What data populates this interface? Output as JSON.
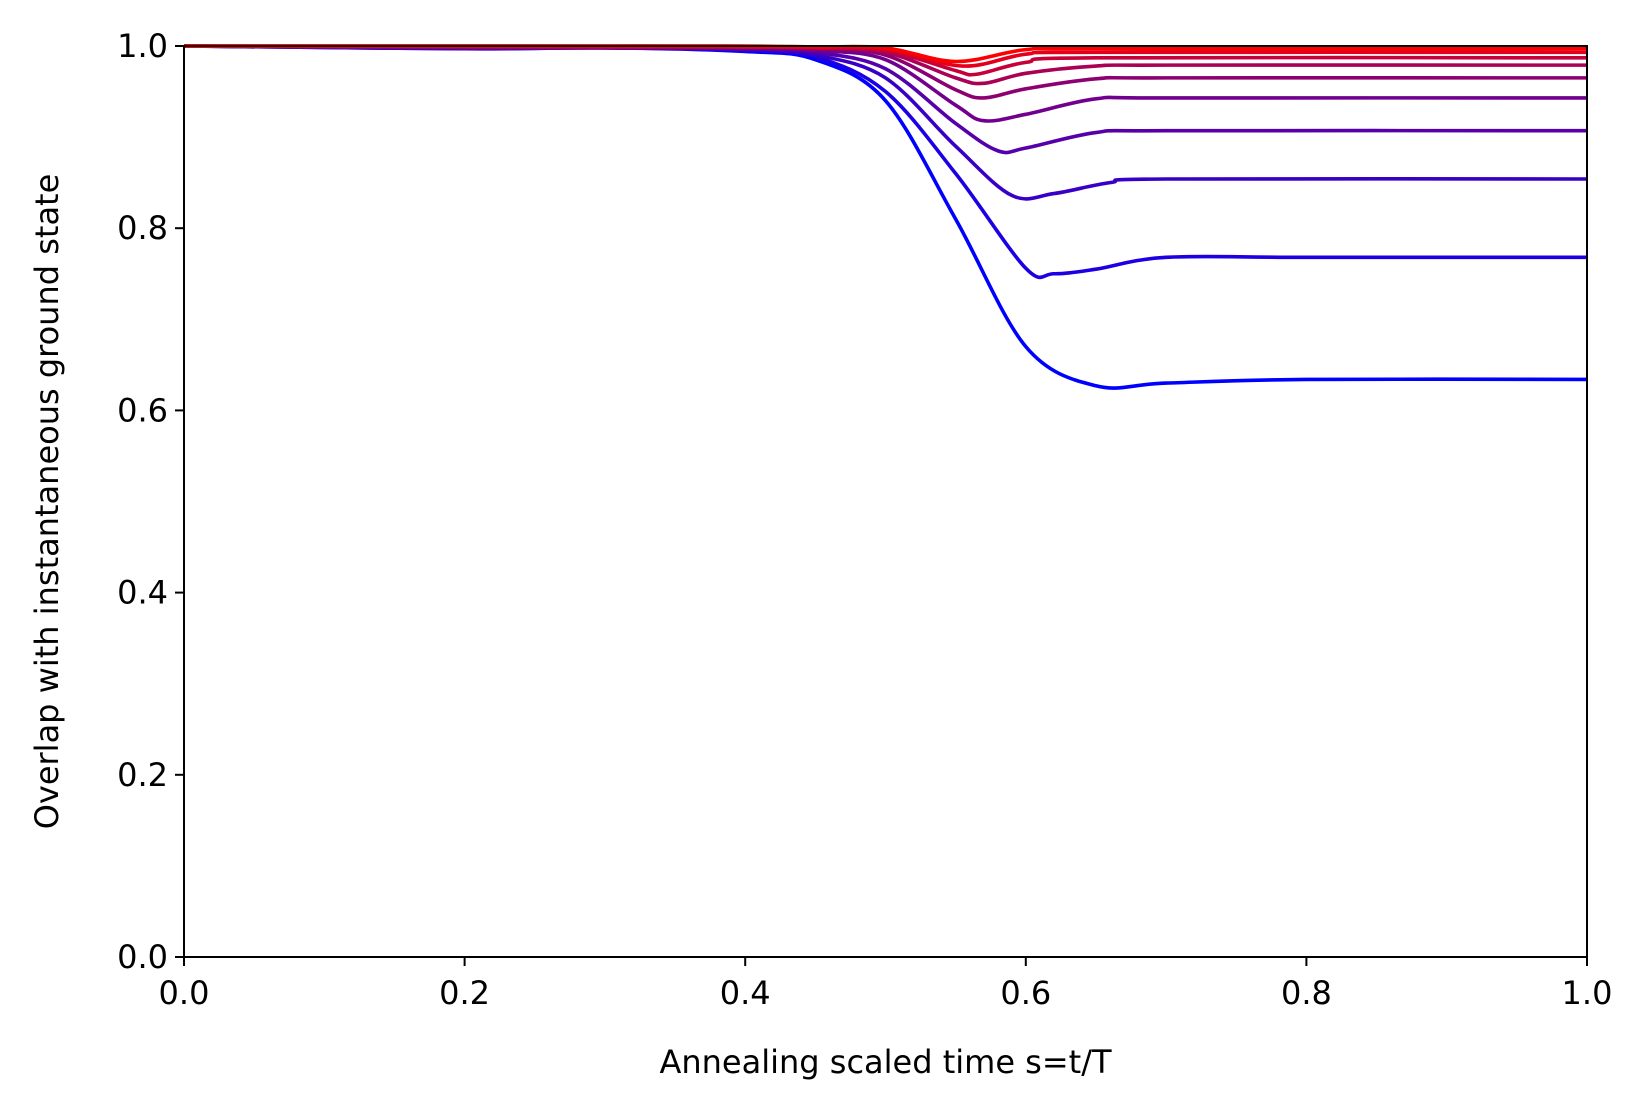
{
  "chart_data": {
    "type": "line",
    "title": "",
    "xlabel": "Annealing scaled time s=t/T",
    "ylabel": "Overlap with instantaneous ground state",
    "xlim": [
      0.0,
      1.0
    ],
    "ylim": [
      0.0,
      1.0
    ],
    "xticks": [
      "0.0",
      "0.2",
      "0.4",
      "0.6",
      "0.8",
      "1.0"
    ],
    "yticks": [
      "0.0",
      "0.2",
      "0.4",
      "0.6",
      "0.8",
      "1.0"
    ],
    "grid": false,
    "legend": "none",
    "color_gradient": {
      "from": "#0000ff",
      "to": "#ff0000"
    },
    "series": [
      {
        "color": "#0000ff",
        "points": [
          [
            0,
            1.0
          ],
          [
            0.2,
            0.997
          ],
          [
            0.3,
            0.998
          ],
          [
            0.4,
            0.994
          ],
          [
            0.45,
            0.985
          ],
          [
            0.5,
            0.94
          ],
          [
            0.55,
            0.81
          ],
          [
            0.6,
            0.67
          ],
          [
            0.65,
            0.627
          ],
          [
            0.7,
            0.63
          ],
          [
            0.8,
            0.634
          ],
          [
            1.0,
            0.634
          ]
        ]
      },
      {
        "color": "#1c00e3",
        "points": [
          [
            0,
            1.0
          ],
          [
            0.2,
            0.997
          ],
          [
            0.3,
            0.998
          ],
          [
            0.4,
            0.995
          ],
          [
            0.45,
            0.988
          ],
          [
            0.5,
            0.95
          ],
          [
            0.55,
            0.86
          ],
          [
            0.6,
            0.756
          ],
          [
            0.62,
            0.75
          ],
          [
            0.65,
            0.755
          ],
          [
            0.7,
            0.768
          ],
          [
            0.8,
            0.768
          ],
          [
            1.0,
            0.768
          ]
        ]
      },
      {
        "color": "#3800c7",
        "points": [
          [
            0,
            1.0
          ],
          [
            0.2,
            0.998
          ],
          [
            0.3,
            0.998
          ],
          [
            0.4,
            0.996
          ],
          [
            0.45,
            0.99
          ],
          [
            0.5,
            0.965
          ],
          [
            0.55,
            0.89
          ],
          [
            0.59,
            0.836
          ],
          [
            0.62,
            0.838
          ],
          [
            0.66,
            0.85
          ],
          [
            0.7,
            0.854
          ],
          [
            1.0,
            0.854
          ]
        ]
      },
      {
        "color": "#5500aa",
        "points": [
          [
            0,
            1.0
          ],
          [
            0.2,
            0.998
          ],
          [
            0.3,
            0.998
          ],
          [
            0.4,
            0.997
          ],
          [
            0.45,
            0.993
          ],
          [
            0.5,
            0.975
          ],
          [
            0.55,
            0.915
          ],
          [
            0.58,
            0.885
          ],
          [
            0.6,
            0.888
          ],
          [
            0.65,
            0.905
          ],
          [
            0.7,
            0.907
          ],
          [
            1.0,
            0.907
          ]
        ]
      },
      {
        "color": "#71008e",
        "points": [
          [
            0,
            1.0
          ],
          [
            0.2,
            0.998
          ],
          [
            0.3,
            0.998
          ],
          [
            0.4,
            0.998
          ],
          [
            0.45,
            0.995
          ],
          [
            0.5,
            0.985
          ],
          [
            0.55,
            0.935
          ],
          [
            0.57,
            0.918
          ],
          [
            0.6,
            0.925
          ],
          [
            0.65,
            0.942
          ],
          [
            0.7,
            0.943
          ],
          [
            1.0,
            0.943
          ]
        ]
      },
      {
        "color": "#8d0072",
        "points": [
          [
            0,
            1.0
          ],
          [
            0.2,
            0.999
          ],
          [
            0.3,
            0.999
          ],
          [
            0.4,
            0.999
          ],
          [
            0.45,
            0.997
          ],
          [
            0.5,
            0.99
          ],
          [
            0.55,
            0.952
          ],
          [
            0.57,
            0.943
          ],
          [
            0.6,
            0.953
          ],
          [
            0.65,
            0.964
          ],
          [
            0.7,
            0.965
          ],
          [
            1.0,
            0.965
          ]
        ]
      },
      {
        "color": "#aa0055",
        "points": [
          [
            0,
            1.0
          ],
          [
            0.2,
            0.999
          ],
          [
            0.3,
            0.999
          ],
          [
            0.4,
            0.999
          ],
          [
            0.45,
            0.998
          ],
          [
            0.5,
            0.993
          ],
          [
            0.55,
            0.965
          ],
          [
            0.57,
            0.959
          ],
          [
            0.6,
            0.97
          ],
          [
            0.65,
            0.978
          ],
          [
            0.7,
            0.979
          ],
          [
            1.0,
            0.979
          ]
        ]
      },
      {
        "color": "#c60039",
        "points": [
          [
            0,
            1.0
          ],
          [
            0.3,
            0.999
          ],
          [
            0.4,
            0.999
          ],
          [
            0.45,
            0.998
          ],
          [
            0.5,
            0.995
          ],
          [
            0.55,
            0.973
          ],
          [
            0.565,
            0.969
          ],
          [
            0.6,
            0.982
          ],
          [
            0.65,
            0.987
          ],
          [
            1.0,
            0.987
          ]
        ]
      },
      {
        "color": "#e3001c",
        "points": [
          [
            0,
            1.0
          ],
          [
            0.3,
            1.0
          ],
          [
            0.4,
            0.999
          ],
          [
            0.45,
            0.999
          ],
          [
            0.5,
            0.997
          ],
          [
            0.555,
            0.978
          ],
          [
            0.6,
            0.991
          ],
          [
            0.65,
            0.993
          ],
          [
            1.0,
            0.993
          ]
        ]
      },
      {
        "color": "#ff0000",
        "points": [
          [
            0,
            1.0
          ],
          [
            0.3,
            1.0
          ],
          [
            0.4,
            1.0
          ],
          [
            0.45,
            0.999
          ],
          [
            0.5,
            0.998
          ],
          [
            0.55,
            0.983
          ],
          [
            0.6,
            0.996
          ],
          [
            0.65,
            0.997
          ],
          [
            1.0,
            0.997
          ]
        ]
      }
    ]
  }
}
